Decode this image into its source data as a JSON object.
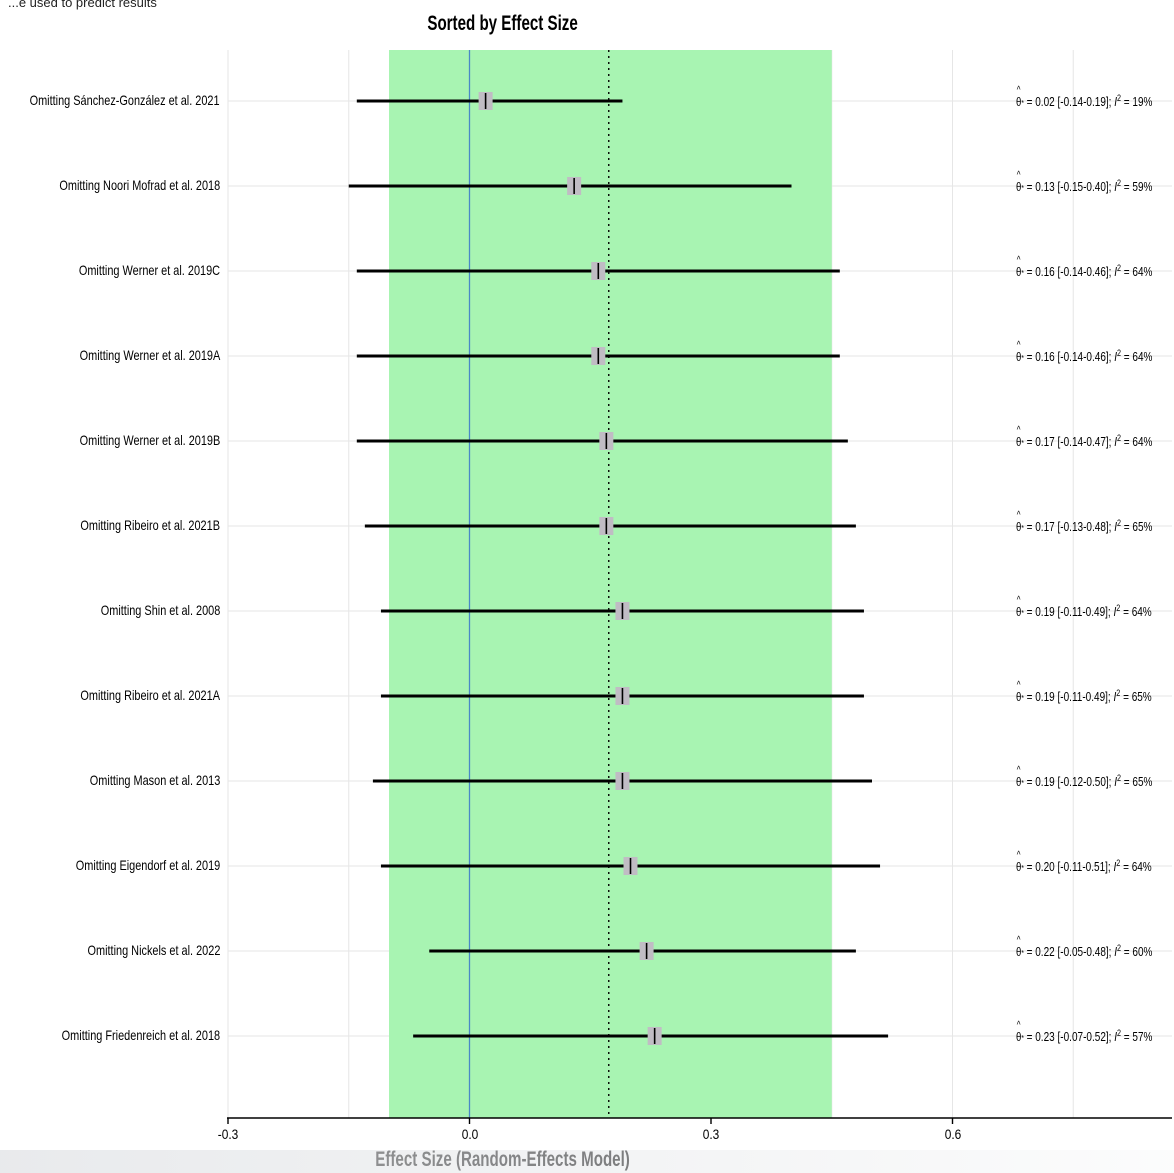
{
  "top_note": "...e used to predict results",
  "chart_data": {
    "type": "forest",
    "title": "Sorted by Effect Size",
    "xlabel": "Effect Size (Random-Effects Model)",
    "xlim": [
      -0.3,
      0.88
    ],
    "xticks": [
      -0.3,
      0.0,
      0.3,
      0.6
    ],
    "xtick_labels": [
      "-0.3",
      "0.0",
      "0.3",
      "0.6"
    ],
    "pooled_estimate": 0.173,
    "shaded_interval": [
      -0.1,
      0.45
    ],
    "null_line": 0.0,
    "colors": {
      "shaded_interval": "#a8f4b2",
      "null_line": "#4a88c6",
      "estimate_marker": "#c0bcc4",
      "ci_line": "#000000",
      "grid": "#e6e6e6"
    },
    "rows": [
      {
        "study": "Omitting Sánchez-González et al. 2021",
        "estimate": 0.02,
        "ci_low": -0.14,
        "ci_high": 0.19,
        "i2": "19%",
        "stat": {
          "est": "0.02",
          "ci": "[-0.14-0.19]",
          "i2": "19%"
        }
      },
      {
        "study": "Omitting Noori Mofrad et al. 2018",
        "estimate": 0.13,
        "ci_low": -0.15,
        "ci_high": 0.4,
        "i2": "59%",
        "stat": {
          "est": "0.13",
          "ci": "[-0.15-0.40]",
          "i2": "59%"
        }
      },
      {
        "study": "Omitting Werner et al. 2019C",
        "estimate": 0.16,
        "ci_low": -0.14,
        "ci_high": 0.46,
        "i2": "64%",
        "stat": {
          "est": "0.16",
          "ci": "[-0.14-0.46]",
          "i2": "64%"
        }
      },
      {
        "study": "Omitting Werner et al. 2019A",
        "estimate": 0.16,
        "ci_low": -0.14,
        "ci_high": 0.46,
        "i2": "64%",
        "stat": {
          "est": "0.16",
          "ci": "[-0.14-0.46]",
          "i2": "64%"
        }
      },
      {
        "study": "Omitting Werner et al. 2019B",
        "estimate": 0.17,
        "ci_low": -0.14,
        "ci_high": 0.47,
        "i2": "64%",
        "stat": {
          "est": "0.17",
          "ci": "[-0.14-0.47]",
          "i2": "64%"
        }
      },
      {
        "study": "Omitting Ribeiro et al. 2021B",
        "estimate": 0.17,
        "ci_low": -0.13,
        "ci_high": 0.48,
        "i2": "65%",
        "stat": {
          "est": "0.17",
          "ci": "[-0.13-0.48]",
          "i2": "65%"
        }
      },
      {
        "study": "Omitting Shin et al. 2008",
        "estimate": 0.19,
        "ci_low": -0.11,
        "ci_high": 0.49,
        "i2": "64%",
        "stat": {
          "est": "0.19",
          "ci": "[-0.11-0.49]",
          "i2": "64%"
        }
      },
      {
        "study": "Omitting Ribeiro et al. 2021A",
        "estimate": 0.19,
        "ci_low": -0.11,
        "ci_high": 0.49,
        "i2": "65%",
        "stat": {
          "est": "0.19",
          "ci": "[-0.11-0.49]",
          "i2": "65%"
        }
      },
      {
        "study": "Omitting Mason et al. 2013",
        "estimate": 0.19,
        "ci_low": -0.12,
        "ci_high": 0.5,
        "i2": "65%",
        "stat": {
          "est": "0.19",
          "ci": "[-0.12-0.50]",
          "i2": "65%"
        }
      },
      {
        "study": "Omitting Eigendorf et al. 2019",
        "estimate": 0.2,
        "ci_low": -0.11,
        "ci_high": 0.51,
        "i2": "64%",
        "stat": {
          "est": "0.20",
          "ci": "[-0.11-0.51]",
          "i2": "64%"
        }
      },
      {
        "study": "Omitting Nickels et al. 2022",
        "estimate": 0.22,
        "ci_low": -0.05,
        "ci_high": 0.48,
        "i2": "60%",
        "stat": {
          "est": "0.22",
          "ci": "[-0.05-0.48]",
          "i2": "60%"
        }
      },
      {
        "study": "Omitting Friedenreich et al. 2018",
        "estimate": 0.23,
        "ci_low": -0.07,
        "ci_high": 0.52,
        "i2": "57%",
        "stat": {
          "est": "0.23",
          "ci": "[-0.07-0.52]",
          "i2": "57%"
        }
      }
    ]
  }
}
